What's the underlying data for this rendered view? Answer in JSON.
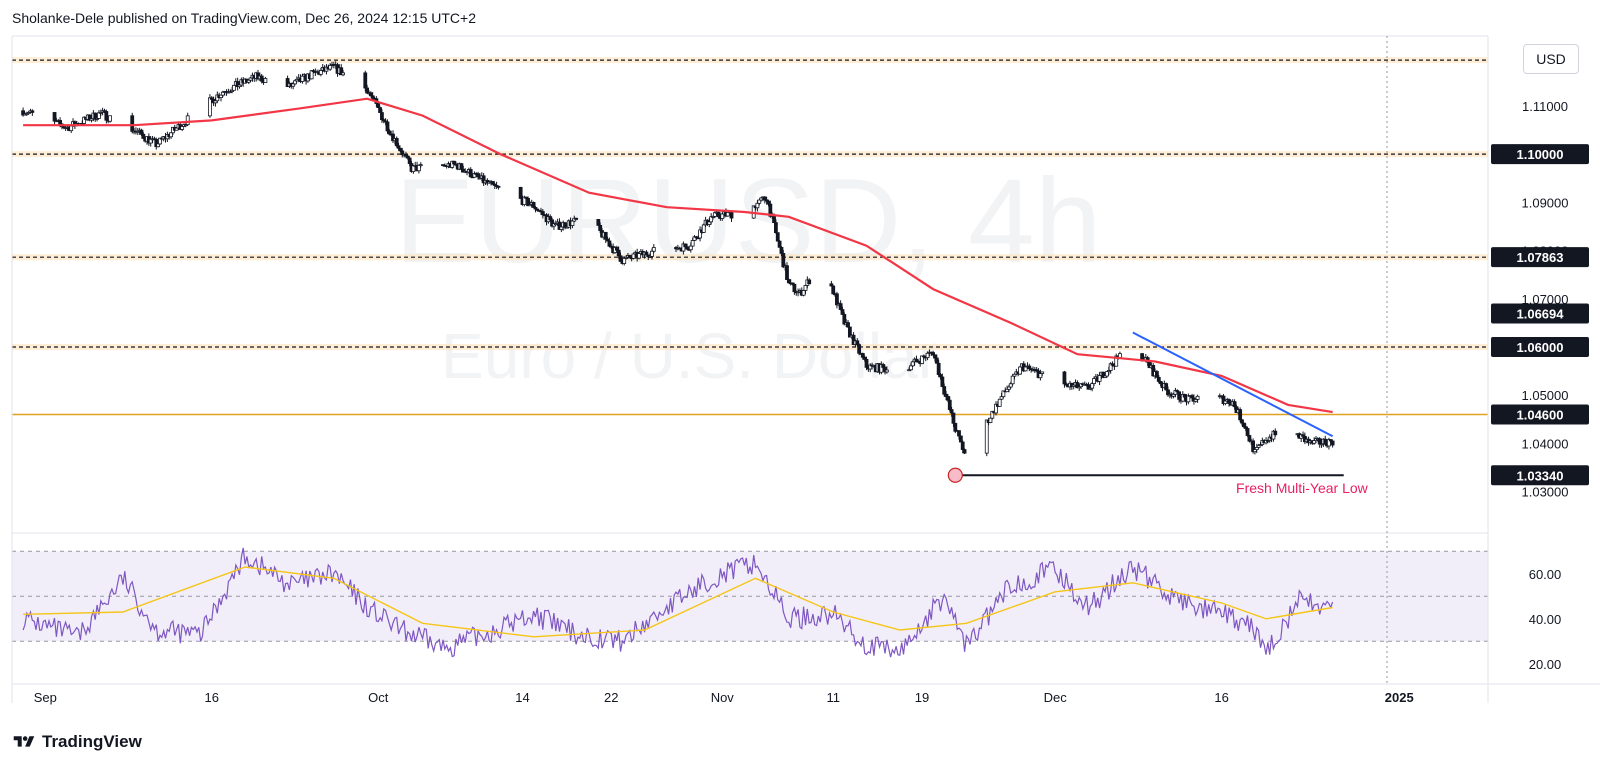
{
  "header": {
    "publisher_line": "Sholanke-Dele published on TradingView.com, Dec 26, 2024 12:15 UTC+2"
  },
  "watermark": {
    "symbol": "EURUSD, 4h",
    "description": "Euro / U.S. Dollar"
  },
  "toolbar": {
    "currency": "USD"
  },
  "footer": {
    "brand": "TradingView"
  },
  "colors": {
    "candle": "#131722",
    "ema": "#f23645",
    "trendline": "#2962ff",
    "level_line": "#f57c00",
    "support_line": "#e0a020",
    "rsi_line": "#7e57c2",
    "rsi_ma": "#f5c518",
    "rsi_band": "#ede7f6",
    "annotation": "#e91e63"
  },
  "chart_data": {
    "type": "candlestick",
    "symbol": "EURUSD",
    "interval": "4h",
    "price_axis": {
      "range": [
        1.0235,
        1.1245
      ],
      "ticks": [
        1.03,
        1.04,
        1.05,
        1.06,
        1.07,
        1.08,
        1.09,
        1.1,
        1.11
      ],
      "tick_labels": [
        "1.03000",
        "1.04000",
        "1.05000",
        "1.06000",
        "1.07000",
        "1.08000",
        "1.09000",
        "1.10000",
        "1.11000"
      ]
    },
    "price_labels": [
      {
        "value": 1.1,
        "label": "1.10000"
      },
      {
        "value": 1.07863,
        "label": "1.07863"
      },
      {
        "value": 1.06694,
        "label": "1.06694"
      },
      {
        "value": 1.06,
        "label": "1.06000"
      },
      {
        "value": 1.046,
        "label": "1.04600"
      },
      {
        "value": 1.0334,
        "label": "1.03340"
      }
    ],
    "time_axis": {
      "labels": [
        "Sep",
        "16",
        "Oct",
        "14",
        "22",
        "Nov",
        "11",
        "19",
        "Dec",
        "16",
        "2025"
      ],
      "dates": [
        "2024-09-01",
        "2024-09-16",
        "2024-10-01",
        "2024-10-14",
        "2024-10-22",
        "2024-11-01",
        "2024-11-11",
        "2024-11-19",
        "2024-12-01",
        "2024-12-16",
        "2025-01-01"
      ]
    },
    "horizontal_levels": [
      {
        "price": 1.1195,
        "style": "dashed",
        "kind": "resistance zone"
      },
      {
        "price": 1.1,
        "style": "dashed",
        "kind": "resistance zone"
      },
      {
        "price": 1.07863,
        "style": "dashed",
        "kind": "level"
      },
      {
        "price": 1.06,
        "style": "dashed",
        "kind": "level"
      },
      {
        "price": 1.046,
        "style": "solid",
        "kind": "support"
      },
      {
        "price": 1.0334,
        "style": "solid",
        "kind": "multi-year low"
      }
    ],
    "close_path": [
      [
        "2024-08-30",
        1.109
      ],
      [
        "2024-09-03",
        1.1055
      ],
      [
        "2024-09-06",
        1.1085
      ],
      [
        "2024-09-09",
        1.105
      ],
      [
        "2024-09-11",
        1.102
      ],
      [
        "2024-09-14",
        1.1075
      ],
      [
        "2024-09-17",
        1.113
      ],
      [
        "2024-09-20",
        1.116
      ],
      [
        "2024-09-23",
        1.114
      ],
      [
        "2024-09-25",
        1.1165
      ],
      [
        "2024-09-27",
        1.118
      ],
      [
        "2024-09-30",
        1.1135
      ],
      [
        "2024-10-02",
        1.105
      ],
      [
        "2024-10-04",
        1.097
      ],
      [
        "2024-10-08",
        1.0978
      ],
      [
        "2024-10-11",
        1.0937
      ],
      [
        "2024-10-15",
        1.0893
      ],
      [
        "2024-10-17",
        1.085
      ],
      [
        "2024-10-20",
        1.0868
      ],
      [
        "2024-10-23",
        1.078
      ],
      [
        "2024-10-26",
        1.08
      ],
      [
        "2024-10-29",
        1.081
      ],
      [
        "2024-10-31",
        1.087
      ],
      [
        "2024-11-03",
        1.088
      ],
      [
        "2024-11-05",
        1.091
      ],
      [
        "2024-11-07",
        1.073
      ],
      [
        "2024-11-08",
        1.071
      ],
      [
        "2024-11-10",
        1.078
      ],
      [
        "2024-11-12",
        1.065
      ],
      [
        "2024-11-14",
        1.056
      ],
      [
        "2024-11-17",
        1.055
      ],
      [
        "2024-11-20",
        1.059
      ],
      [
        "2024-11-22",
        1.043
      ],
      [
        "2024-11-23",
        1.037
      ],
      [
        "2024-11-26",
        1.049
      ],
      [
        "2024-11-28",
        1.056
      ],
      [
        "2024-12-02",
        1.052
      ],
      [
        "2024-12-04",
        1.0515
      ],
      [
        "2024-12-06",
        1.056
      ],
      [
        "2024-12-08",
        1.061
      ],
      [
        "2024-12-11",
        1.051
      ],
      [
        "2024-12-13",
        1.049
      ],
      [
        "2024-12-15",
        1.05
      ],
      [
        "2024-12-17",
        1.0485
      ],
      [
        "2024-12-18",
        1.044
      ],
      [
        "2024-12-19",
        1.038
      ],
      [
        "2024-12-20",
        1.041
      ],
      [
        "2024-12-22",
        1.043
      ],
      [
        "2024-12-24",
        1.04
      ],
      [
        "2024-12-26",
        1.0405
      ]
    ],
    "ema_path": [
      [
        "2024-08-30",
        1.106
      ],
      [
        "2024-09-09",
        1.106
      ],
      [
        "2024-09-16",
        1.107
      ],
      [
        "2024-09-24",
        1.1095
      ],
      [
        "2024-09-30",
        1.1115
      ],
      [
        "2024-10-05",
        1.108
      ],
      [
        "2024-10-12",
        1.1
      ],
      [
        "2024-10-20",
        1.092
      ],
      [
        "2024-10-27",
        1.089
      ],
      [
        "2024-11-03",
        1.088
      ],
      [
        "2024-11-07",
        1.087
      ],
      [
        "2024-11-14",
        1.081
      ],
      [
        "2024-11-20",
        1.072
      ],
      [
        "2024-11-27",
        1.065
      ],
      [
        "2024-12-03",
        1.0585
      ],
      [
        "2024-12-10",
        1.057
      ],
      [
        "2024-12-16",
        1.054
      ],
      [
        "2024-12-22",
        1.048
      ],
      [
        "2024-12-26",
        1.0465
      ]
    ],
    "trendline": {
      "from": [
        "2024-12-08",
        1.063
      ],
      "to": [
        "2024-12-26",
        1.0415
      ]
    },
    "low_marker": {
      "date": "2024-11-22",
      "price": 1.0334
    },
    "annotations": [
      {
        "text": "Fresh Multi-Year Low",
        "date": "2024-12-20",
        "price": 1.0305
      }
    ],
    "rsi": {
      "range": [
        15,
        75
      ],
      "ticks": [
        20,
        40,
        60
      ],
      "tick_labels": [
        "20.00",
        "40.00",
        "60.00"
      ],
      "band": [
        30,
        70
      ],
      "midline": 50,
      "path": [
        [
          "2024-08-30",
          40
        ],
        [
          "2024-09-04",
          32
        ],
        [
          "2024-09-08",
          58
        ],
        [
          "2024-09-11",
          35
        ],
        [
          "2024-09-15",
          33
        ],
        [
          "2024-09-19",
          68
        ],
        [
          "2024-09-23",
          55
        ],
        [
          "2024-09-27",
          60
        ],
        [
          "2024-09-30",
          45
        ],
        [
          "2024-10-03",
          35
        ],
        [
          "2024-10-07",
          27
        ],
        [
          "2024-10-11",
          34
        ],
        [
          "2024-10-15",
          42
        ],
        [
          "2024-10-19",
          33
        ],
        [
          "2024-10-23",
          30
        ],
        [
          "2024-10-27",
          45
        ],
        [
          "2024-10-31",
          58
        ],
        [
          "2024-11-04",
          65
        ],
        [
          "2024-11-07",
          40
        ],
        [
          "2024-11-11",
          42
        ],
        [
          "2024-11-14",
          28
        ],
        [
          "2024-11-17",
          25
        ],
        [
          "2024-11-21",
          50
        ],
        [
          "2024-11-23",
          28
        ],
        [
          "2024-11-27",
          55
        ],
        [
          "2024-12-01",
          62
        ],
        [
          "2024-12-04",
          45
        ],
        [
          "2024-12-08",
          63
        ],
        [
          "2024-12-12",
          48
        ],
        [
          "2024-12-16",
          42
        ],
        [
          "2024-12-19",
          35
        ],
        [
          "2024-12-20",
          25
        ],
        [
          "2024-12-23",
          48
        ],
        [
          "2024-12-26",
          45
        ]
      ],
      "ma_path": [
        [
          "2024-08-30",
          42
        ],
        [
          "2024-09-08",
          43
        ],
        [
          "2024-09-19",
          63
        ],
        [
          "2024-09-27",
          58
        ],
        [
          "2024-10-05",
          38
        ],
        [
          "2024-10-15",
          32
        ],
        [
          "2024-10-25",
          35
        ],
        [
          "2024-11-04",
          58
        ],
        [
          "2024-11-11",
          43
        ],
        [
          "2024-11-17",
          35
        ],
        [
          "2024-11-23",
          38
        ],
        [
          "2024-12-01",
          52
        ],
        [
          "2024-12-08",
          56
        ],
        [
          "2024-12-16",
          47
        ],
        [
          "2024-12-20",
          40
        ],
        [
          "2024-12-26",
          45
        ]
      ]
    }
  }
}
